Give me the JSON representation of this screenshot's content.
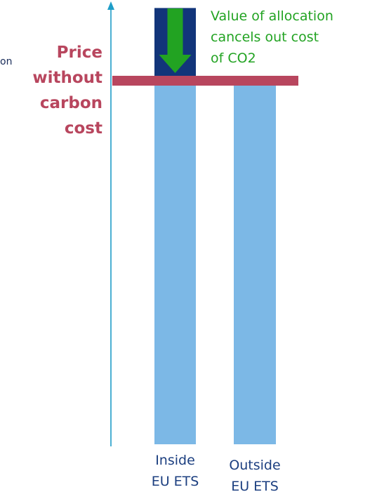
{
  "chart_data": {
    "type": "bar",
    "categories": [
      "Inside\nEU ETS",
      "Outside\nEU ETS"
    ],
    "series": [
      {
        "values": [
          100,
          100
        ]
      },
      {
        "values": [
          20,
          0
        ]
      }
    ],
    "reference_line": {
      "value": 100,
      "label": "Price\nwithout\ncarbon\ncost"
    },
    "annotation": "Value of allocation\ncancels out cost\nof CO2",
    "cut_off_label": "on",
    "ylim": [
      0,
      120
    ],
    "grid": false,
    "legend": "none"
  },
  "colors": {
    "base_bar": "#7cb8e6",
    "carbon_cost_bar": "#12357a",
    "reference_line": "#b8465e",
    "reference_label": "#b8465e",
    "annotation": "#22a322",
    "arrow": "#22a322",
    "axis": "#1e9dc8",
    "category_label": "#1c3f80"
  },
  "icons": {
    "axis_arrow": "arrow-up-icon",
    "allocation_arrow": "arrow-down-icon"
  }
}
